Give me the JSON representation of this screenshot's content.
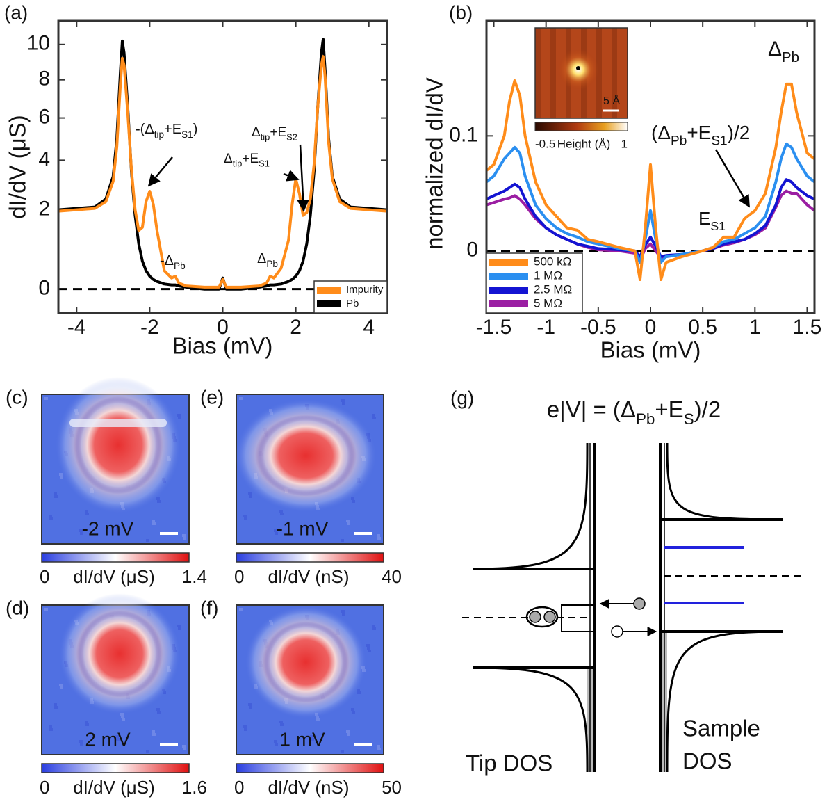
{
  "chart_data": [
    {
      "type": "line",
      "panel": "(a)",
      "x_label": "Bias (mV)",
      "y_label": "dI/dV (μS)",
      "yscale": "power",
      "ypower": 0.7,
      "xlim": [
        -4.5,
        4.5
      ],
      "ylim": [
        -0.36,
        11.4
      ],
      "xticks": [
        -4,
        -2,
        0,
        2,
        4
      ],
      "yticks": [
        0,
        2,
        4,
        6,
        8,
        10
      ],
      "hline": 0,
      "legend": "lower right",
      "x": [
        -4.5,
        -4,
        -3.5,
        -3.2,
        -3,
        -2.9,
        -2.8,
        -2.75,
        -2.7,
        -2.6,
        -2.5,
        -2.4,
        -2.3,
        -2.2,
        -2.1,
        -2.0,
        -1.9,
        -1.8,
        -1.6,
        -1.4,
        -1.3,
        -1.2,
        -1,
        -0.5,
        -0.1,
        0,
        0.1,
        0.5,
        1,
        1.2,
        1.3,
        1.4,
        1.6,
        1.8,
        1.9,
        2.0,
        2.1,
        2.2,
        2.3,
        2.4,
        2.5,
        2.6,
        2.7,
        2.75,
        2.8,
        2.9,
        3,
        3.2,
        3.5,
        4,
        4.5
      ],
      "series": [
        {
          "name": "Impurity",
          "color": "#ff8c1a",
          "values": [
            1.95,
            2.0,
            2.05,
            2.3,
            3.1,
            4.6,
            7.8,
            9.2,
            8.8,
            6.2,
            3.6,
            2.0,
            1.3,
            1.4,
            2.3,
            2.7,
            2.2,
            1.3,
            0.25,
            0.12,
            0.15,
            0.05,
            0.02,
            0.01,
            0.01,
            0.1,
            0.01,
            0.01,
            0.02,
            0.05,
            0.15,
            0.12,
            0.3,
            1.0,
            2.2,
            3.2,
            2.6,
            1.8,
            1.9,
            2.4,
            3.8,
            6.5,
            8.8,
            9.3,
            8.2,
            4.8,
            3.2,
            2.3,
            2.05,
            2.0,
            1.95
          ]
        },
        {
          "name": "Pb",
          "color": "#000000",
          "values": [
            2.0,
            2.05,
            2.1,
            2.4,
            3.3,
            5,
            8.5,
            10.2,
            9.5,
            6.5,
            3.5,
            1.8,
            0.9,
            0.45,
            0.25,
            0.15,
            0.1,
            0.07,
            0.04,
            0.03,
            0.03,
            0.02,
            0.01,
            0,
            0,
            0.12,
            0,
            0,
            0.01,
            0.02,
            0.03,
            0.03,
            0.04,
            0.07,
            0.1,
            0.15,
            0.25,
            0.45,
            0.9,
            1.8,
            3.5,
            6.5,
            9.5,
            10.3,
            8.6,
            5,
            3.3,
            2.4,
            2.1,
            2.05,
            2.0
          ]
        }
      ],
      "annotations": [
        [
          "-(Δ",
          "tip",
          "+E",
          "S1",
          ")"
        ],
        [
          "-Δ",
          "Pb"
        ],
        [
          "Δ",
          "Pb"
        ],
        [
          "Δ",
          "tip",
          "+E",
          "S1"
        ],
        [
          "Δ",
          "tip",
          "+E",
          "S2"
        ]
      ]
    },
    {
      "type": "line",
      "panel": "(b)",
      "x_label": "Bias (mV)",
      "y_label": "normalized dI/dV",
      "xlim": [
        -1.57,
        1.57
      ],
      "ylim": [
        -0.054,
        0.2
      ],
      "xticks": [
        -1.5,
        -1,
        -0.5,
        0,
        0.5,
        1,
        1.5
      ],
      "yticks": [
        0,
        0.1
      ],
      "hline": 0,
      "legend": "lower left",
      "x": [
        -1.57,
        -1.5,
        -1.4,
        -1.35,
        -1.3,
        -1.25,
        -1.2,
        -1.1,
        -1.0,
        -0.9,
        -0.8,
        -0.7,
        -0.6,
        -0.5,
        -0.3,
        -0.15,
        -0.1,
        -0.05,
        0,
        0.05,
        0.1,
        0.15,
        0.3,
        0.5,
        0.6,
        0.7,
        0.8,
        0.9,
        1.0,
        1.1,
        1.2,
        1.25,
        1.3,
        1.35,
        1.4,
        1.5,
        1.57
      ],
      "series": [
        {
          "name": "500 kΩ",
          "color": "#ff8c1a",
          "values": [
            0.07,
            0.075,
            0.1,
            0.13,
            0.148,
            0.135,
            0.1,
            0.06,
            0.04,
            0.03,
            0.02,
            0.018,
            0.01,
            0.008,
            0.003,
            0,
            -0.025,
            0.02,
            0.075,
            0.02,
            -0.025,
            -0.01,
            -0.005,
            0,
            0.003,
            0.012,
            0.012,
            0.028,
            0.035,
            0.05,
            0.09,
            0.12,
            0.145,
            0.145,
            0.12,
            0.085,
            0.08
          ]
        },
        {
          "name": "1 MΩ",
          "color": "#2b8ff0",
          "values": [
            0.06,
            0.065,
            0.08,
            0.085,
            0.09,
            0.085,
            0.065,
            0.04,
            0.028,
            0.02,
            0.015,
            0.012,
            0.008,
            0.006,
            0.002,
            0,
            -0.01,
            0.01,
            0.035,
            0.01,
            -0.01,
            -0.005,
            -0.003,
            0,
            0.003,
            0.008,
            0.01,
            0.015,
            0.02,
            0.03,
            0.06,
            0.08,
            0.093,
            0.09,
            0.08,
            0.065,
            0.06
          ]
        },
        {
          "name": "2.5 MΩ",
          "color": "#1414d2",
          "values": [
            0.045,
            0.048,
            0.052,
            0.055,
            0.058,
            0.055,
            0.045,
            0.03,
            0.02,
            0.014,
            0.01,
            0.006,
            0.004,
            0.002,
            0.001,
            0,
            -0.005,
            0.005,
            0.012,
            0.004,
            -0.005,
            -0.004,
            -0.003,
            0,
            0.002,
            0.006,
            0.008,
            0.01,
            0.015,
            0.022,
            0.04,
            0.055,
            0.062,
            0.06,
            0.055,
            0.048,
            0.045
          ]
        },
        {
          "name": "5 MΩ",
          "color": "#9b1fa3",
          "values": [
            0.04,
            0.042,
            0.045,
            0.046,
            0.048,
            0.045,
            0.04,
            0.028,
            0.02,
            0.014,
            0.01,
            0.006,
            0.003,
            0.001,
            0,
            -0.002,
            -0.008,
            0.002,
            0.006,
            0,
            -0.006,
            -0.005,
            -0.003,
            0,
            0.002,
            0.005,
            0.007,
            0.01,
            0.014,
            0.02,
            0.038,
            0.048,
            0.052,
            0.05,
            0.05,
            0.04,
            0.035
          ]
        }
      ],
      "annotations": [
        [
          "Δ",
          "Pb"
        ],
        [
          "(Δ",
          "Pb",
          "+E",
          "S1",
          ")/2"
        ],
        [
          "E",
          "S1"
        ]
      ],
      "inset": {
        "scalebar": "5 Å",
        "colorbar_min": -0.5,
        "colorbar_label": "Height (Å)",
        "colorbar_max": 1
      }
    }
  ],
  "maps": [
    {
      "panel": "(c)",
      "bias": "-2 mV",
      "colorbar_min": 0,
      "colorbar_label": "dI/dV (μS)",
      "colorbar_max": 1.4
    },
    {
      "panel": "(d)",
      "bias": "2 mV",
      "colorbar_min": 0,
      "colorbar_label": "dI/dV (μS)",
      "colorbar_max": 1.6
    },
    {
      "panel": "(e)",
      "bias": "-1 mV",
      "colorbar_min": 0,
      "colorbar_label": "dI/dV (nS)",
      "colorbar_max": 40
    },
    {
      "panel": "(f)",
      "bias": "1 mV",
      "colorbar_min": 0,
      "colorbar_label": "dI/dV (nS)",
      "colorbar_max": 50
    }
  ],
  "diagram": {
    "panel": "(g)",
    "title": [
      "e|V| = (Δ",
      "Pb",
      "+E",
      "S",
      ")/2"
    ],
    "tip_label": "Tip DOS",
    "sample_label": [
      "Sample",
      "DOS"
    ]
  }
}
